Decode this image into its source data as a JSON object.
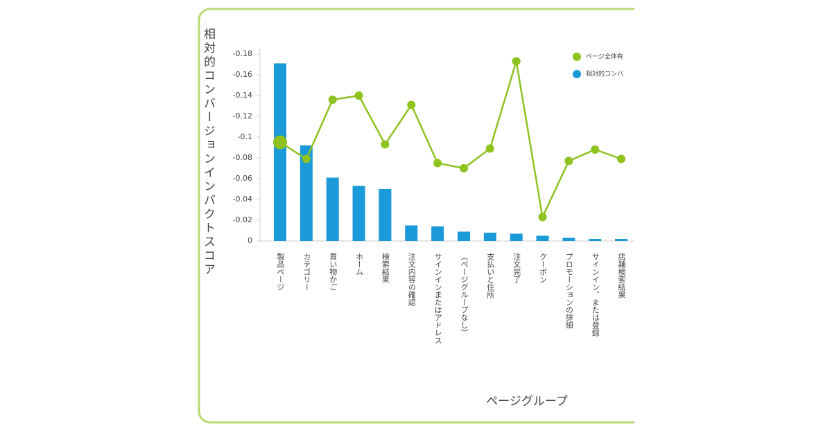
{
  "chart_data": {
    "type": "bar+line",
    "y_axis_label": "相対的コンバージョンインパクトスコア",
    "x_axis_label": "ページグループ",
    "categories": [
      "製品ページ",
      "カテゴリー",
      "買い物かご",
      "ホーム",
      "検索結果",
      "注文内容の確認",
      "サインインまたはアドレス",
      "（ページグループなし）",
      "支払いと住所",
      "注文完了",
      "クーポン",
      "プロモーションの詳細",
      "サインイン、または登録",
      "店舗検索結果"
    ],
    "series": [
      {
        "name": "ページ全体有",
        "type": "line",
        "color": "#8dc21f",
        "values": [
          -0.095,
          -0.079,
          -0.136,
          -0.14,
          -0.093,
          -0.131,
          -0.075,
          -0.07,
          -0.089,
          -0.173,
          -0.023,
          -0.077,
          -0.088,
          -0.079
        ]
      },
      {
        "name": "相対的コンバ",
        "type": "bar",
        "color": "#1a9ad9",
        "values": [
          -0.171,
          -0.092,
          -0.061,
          -0.053,
          -0.05,
          -0.015,
          -0.014,
          -0.009,
          -0.008,
          -0.007,
          -0.005,
          -0.003,
          -0.002,
          -0.002
        ]
      }
    ],
    "ylim": [
      0,
      -0.18
    ],
    "yticks": [
      -0.18,
      -0.16,
      -0.14,
      -0.12,
      -0.1,
      -0.08,
      -0.06,
      -0.04,
      -0.02,
      0
    ],
    "legend": "top-right"
  }
}
